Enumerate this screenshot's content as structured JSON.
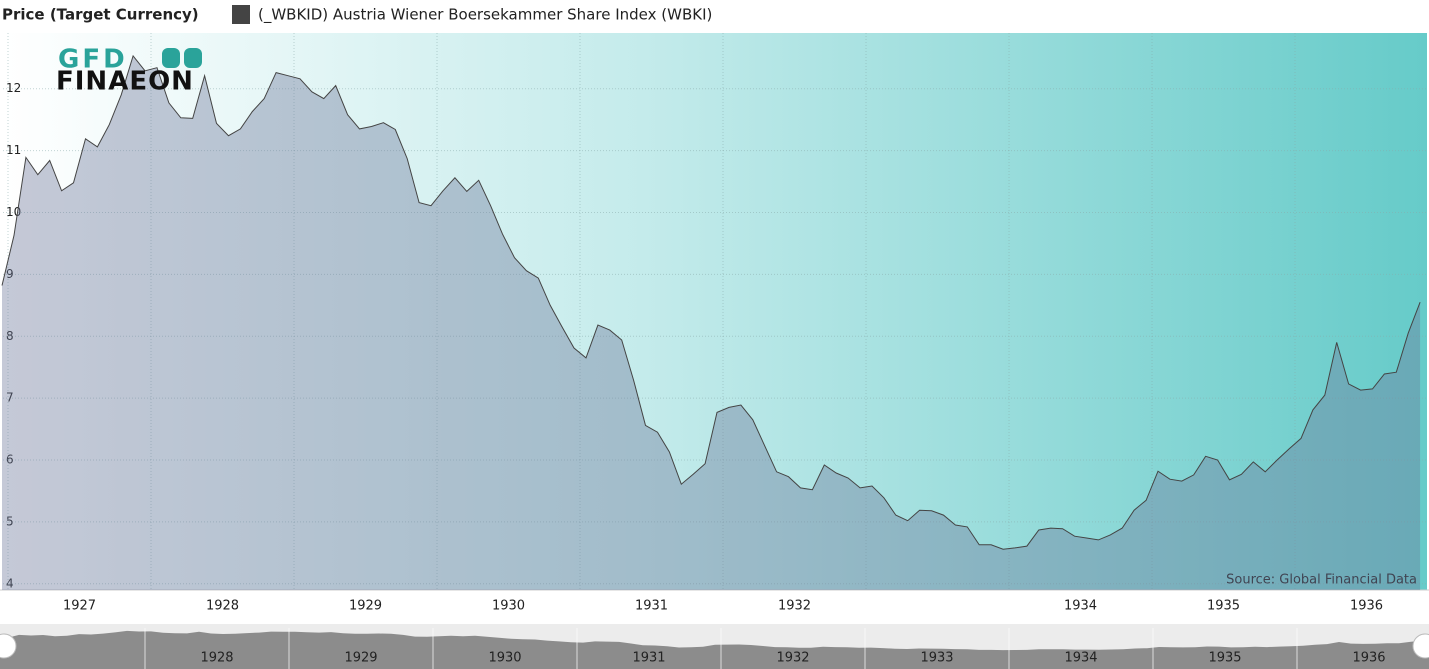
{
  "chart_data": {
    "type": "area",
    "title": "Price (Target Currency)",
    "logo": {
      "top": "GFD",
      "bottom": "FINAEON"
    },
    "source": "Source: Global Financial Data",
    "series": [
      {
        "name": "(_WBKID) Austria Wiener Boersekammer Share Index (WBKI)",
        "color": "#444444",
        "values": [
          8.82,
          9.63,
          10.89,
          10.61,
          10.84,
          10.35,
          10.48,
          11.19,
          11.06,
          11.42,
          11.9,
          12.53,
          12.29,
          12.34,
          11.77,
          11.53,
          11.52,
          12.21,
          11.44,
          11.24,
          11.35,
          11.63,
          11.84,
          12.26,
          12.21,
          12.16,
          11.95,
          11.84,
          12.05,
          11.58,
          11.35,
          11.39,
          11.45,
          11.34,
          10.87,
          10.16,
          10.11,
          10.35,
          10.56,
          10.34,
          10.52,
          10.11,
          9.65,
          9.27,
          9.06,
          8.94,
          8.5,
          8.15,
          7.81,
          7.65,
          8.18,
          8.1,
          7.94,
          7.29,
          6.56,
          6.45,
          6.13,
          5.61,
          5.77,
          5.94,
          6.77,
          6.85,
          6.89,
          6.65,
          6.23,
          5.81,
          5.73,
          5.55,
          5.52,
          5.92,
          5.79,
          5.71,
          5.55,
          5.58,
          5.39,
          5.11,
          5.02,
          5.19,
          5.18,
          5.11,
          4.95,
          4.92,
          4.63,
          4.63,
          4.56,
          4.58,
          4.61,
          4.87,
          4.9,
          4.89,
          4.77,
          4.74,
          4.71,
          4.79,
          4.9,
          5.19,
          5.35,
          5.82,
          5.69,
          5.66,
          5.76,
          6.06,
          6.0,
          5.68,
          5.77,
          5.97,
          5.81,
          6.0,
          6.18,
          6.35,
          6.81,
          7.05,
          7.9,
          7.23,
          7.13,
          7.15,
          7.39,
          7.42,
          8.05,
          8.55
        ]
      }
    ],
    "x": [
      "1926-12",
      "1927-01",
      "1927-02",
      "1927-03",
      "1927-04",
      "1927-05",
      "1927-06",
      "1927-07",
      "1927-08",
      "1927-09",
      "1927-10",
      "1927-11",
      "1927-12",
      "1928-01",
      "1928-02",
      "1928-03",
      "1928-04",
      "1928-05",
      "1928-06",
      "1928-07",
      "1928-08",
      "1928-09",
      "1928-10",
      "1928-11",
      "1928-12",
      "1929-01",
      "1929-02",
      "1929-03",
      "1929-04",
      "1929-05",
      "1929-06",
      "1929-07",
      "1929-08",
      "1929-09",
      "1929-10",
      "1929-11",
      "1929-12",
      "1930-01",
      "1930-02",
      "1930-03",
      "1930-04",
      "1930-05",
      "1930-06",
      "1930-07",
      "1930-08",
      "1930-09",
      "1930-10",
      "1930-11",
      "1930-12",
      "1931-01",
      "1931-02",
      "1931-03",
      "1931-04",
      "1931-05",
      "1931-06",
      "1931-07",
      "1931-08",
      "1931-09",
      "1931-10",
      "1931-11",
      "1931-12",
      "1932-01",
      "1932-02",
      "1932-03",
      "1932-04",
      "1932-05",
      "1932-06",
      "1932-07",
      "1932-08",
      "1932-09",
      "1932-10",
      "1932-11",
      "1932-12",
      "1933-01",
      "1933-02",
      "1933-03",
      "1933-04",
      "1933-05",
      "1933-06",
      "1933-07",
      "1933-08",
      "1933-09",
      "1933-10",
      "1933-11",
      "1933-12",
      "1934-01",
      "1934-02",
      "1934-03",
      "1934-04",
      "1934-05",
      "1934-06",
      "1934-07",
      "1934-08",
      "1934-09",
      "1934-10",
      "1934-11",
      "1934-12",
      "1935-01",
      "1935-02",
      "1935-03",
      "1935-04",
      "1935-05",
      "1935-06",
      "1935-07",
      "1935-08",
      "1935-09",
      "1935-10",
      "1935-11",
      "1935-12",
      "1936-01",
      "1936-02",
      "1936-03",
      "1936-04",
      "1936-05",
      "1936-06",
      "1936-07",
      "1936-08",
      "1936-09",
      "1936-10",
      "1936-11"
    ],
    "xlim": [
      1926.965,
      1936.923
    ],
    "xticks": [
      1927,
      1928,
      1929,
      1930,
      1931,
      1932,
      {
        "value": 1933,
        "label": null
      },
      1934,
      1935,
      1936
    ],
    "ylim": [
      3.9,
      12.9
    ],
    "yticks": [
      4,
      5,
      6,
      7,
      8,
      9,
      10,
      11,
      12
    ],
    "grid": true,
    "navigator": {
      "labels": [
        "1928",
        "1929",
        "1930",
        "1931",
        "1932",
        "1933",
        "1934",
        "1935",
        "1936"
      ]
    }
  }
}
